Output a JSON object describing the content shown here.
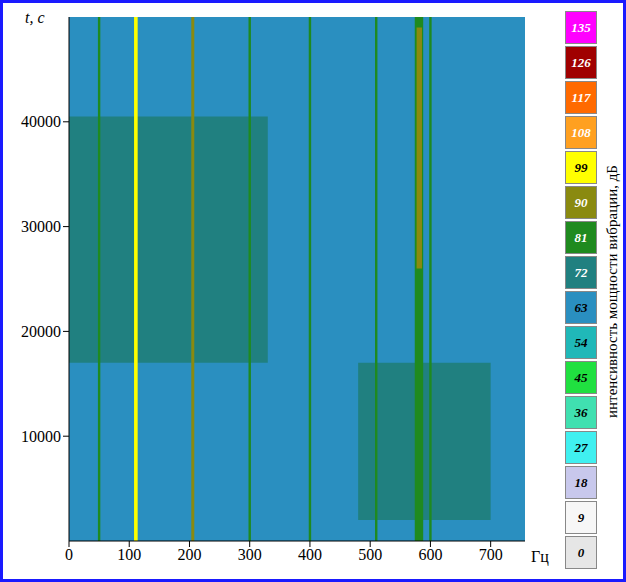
{
  "chart_data": {
    "type": "heatmap",
    "x_label": "Гц",
    "y_label": "t, c",
    "xlim": [
      0,
      757
    ],
    "xticks": [
      0,
      100,
      200,
      300,
      400,
      500,
      600,
      700
    ],
    "ylim": [
      0,
      50000
    ],
    "yticks": [
      10000,
      20000,
      30000,
      40000
    ],
    "cells": [
      {
        "x0": 0,
        "x1": 757,
        "y0": 0,
        "y1": 50000,
        "level": 63
      },
      {
        "x0": 0,
        "x1": 330,
        "y0": 17000,
        "y1": 40500,
        "level": 72
      },
      {
        "x0": 480,
        "x1": 700,
        "y0": 2000,
        "y1": 17000,
        "level": 72
      },
      {
        "x0": 48,
        "x1": 52,
        "y0": 0,
        "y1": 50000,
        "level": 81
      },
      {
        "x0": 298,
        "x1": 302,
        "y0": 0,
        "y1": 50000,
        "level": 81
      },
      {
        "x0": 398,
        "x1": 402,
        "y0": 0,
        "y1": 50000,
        "level": 81
      },
      {
        "x0": 508,
        "x1": 512,
        "y0": 0,
        "y1": 50000,
        "level": 81
      },
      {
        "x0": 598,
        "x1": 602,
        "y0": 0,
        "y1": 50000,
        "level": 81
      },
      {
        "x0": 574,
        "x1": 588,
        "y0": 0,
        "y1": 50000,
        "level": 81
      },
      {
        "x0": 108,
        "x1": 114,
        "y0": 0,
        "y1": 50000,
        "level": 99
      },
      {
        "x0": 203,
        "x1": 208,
        "y0": 0,
        "y1": 50000,
        "level": 90
      },
      {
        "x0": 577,
        "x1": 586,
        "y0": 26000,
        "y1": 49000,
        "level": 90
      }
    ],
    "colorbar": {
      "label": "интенсивность мощности вибрации, дБ",
      "ticks": [
        0,
        9,
        18,
        27,
        36,
        45,
        54,
        63,
        72,
        81,
        90,
        99,
        108,
        117,
        126,
        135
      ],
      "colors": [
        "#e6e6e6",
        "#f7f7f7",
        "#c8c8ec",
        "#40f0f0",
        "#40e0b0",
        "#20e040",
        "#20b8b8",
        "#2a8fc0",
        "#208080",
        "#1f8a1f",
        "#8a8a10",
        "#ffff00",
        "#ffa020",
        "#ff6a00",
        "#a00000",
        "#ff00ff"
      ]
    }
  }
}
